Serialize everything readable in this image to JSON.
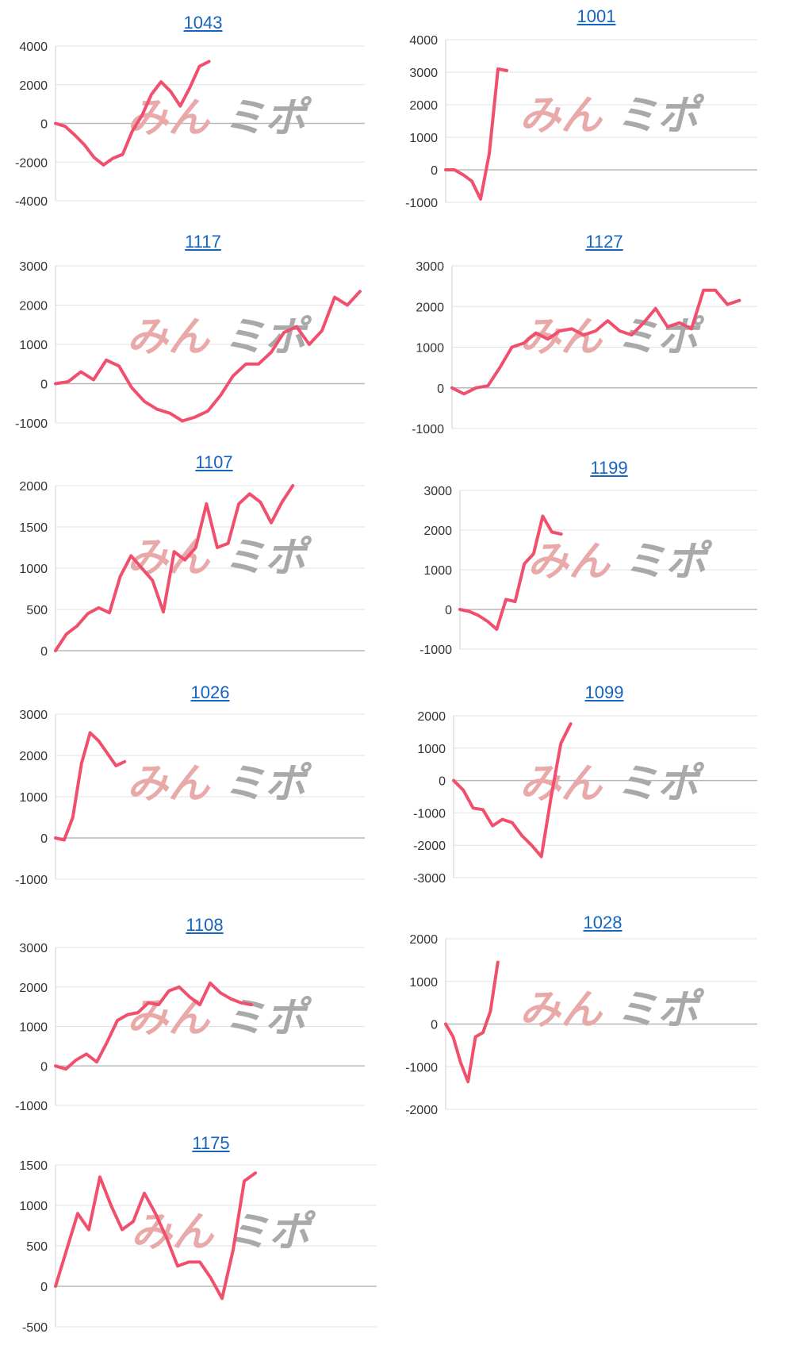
{
  "colors": {
    "line": "#f0506e",
    "title": "#1565c0",
    "watermark_red": "#e9a9a9",
    "watermark_gray": "#a9a9a9"
  },
  "watermark": {
    "part1": "みん",
    "part2": "ミポ"
  },
  "chart_data": [
    {
      "type": "line",
      "title": "1043",
      "ylim": [
        -4000,
        4000
      ],
      "yticks": [
        4000,
        2000,
        0,
        -2000,
        -4000
      ],
      "series": [
        {
          "values": [
            0,
            -150,
            -600,
            -1100,
            -1750,
            -2150,
            -1800,
            -1600,
            -400,
            400,
            1500,
            2150,
            1650,
            900,
            1850,
            2950,
            3200
          ]
        }
      ]
    },
    {
      "type": "line",
      "title": "1001",
      "ylim": [
        -1000,
        4000
      ],
      "yticks": [
        4000,
        3000,
        2000,
        1000,
        0,
        -1000
      ],
      "series": [
        {
          "values": [
            0,
            0,
            -150,
            -350,
            -900,
            500,
            3100,
            3050
          ]
        }
      ]
    },
    {
      "type": "line",
      "title": "1117",
      "ylim": [
        -1000,
        3000
      ],
      "yticks": [
        3000,
        2000,
        1000,
        0,
        -1000
      ],
      "series": [
        {
          "values": [
            0,
            50,
            300,
            100,
            600,
            450,
            -100,
            -450,
            -650,
            -750,
            -950,
            -850,
            -700,
            -300,
            200,
            500,
            500,
            800,
            1300,
            1450,
            1000,
            1350,
            2200,
            2000,
            2350
          ]
        }
      ]
    },
    {
      "type": "line",
      "title": "1127",
      "ylim": [
        -1000,
        3000
      ],
      "yticks": [
        3000,
        2000,
        1000,
        0,
        -1000
      ],
      "series": [
        {
          "values": [
            0,
            -150,
            0,
            50,
            500,
            1000,
            1100,
            1350,
            1200,
            1400,
            1450,
            1300,
            1400,
            1650,
            1400,
            1300,
            1600,
            1950,
            1500,
            1600,
            1450,
            2400,
            2400,
            2050,
            2150
          ]
        }
      ]
    },
    {
      "type": "line",
      "title": "1107",
      "ylim": [
        0,
        2000
      ],
      "yticks": [
        2000,
        1500,
        1000,
        500,
        0
      ],
      "series": [
        {
          "values": [
            0,
            200,
            300,
            450,
            520,
            460,
            900,
            1150,
            1000,
            850,
            470,
            1200,
            1100,
            1250,
            1780,
            1250,
            1300,
            1780,
            1900,
            1800,
            1550,
            1800,
            2000
          ]
        }
      ]
    },
    {
      "type": "line",
      "title": "1199",
      "ylim": [
        -1000,
        3000
      ],
      "yticks": [
        3000,
        2000,
        1000,
        0,
        -1000
      ],
      "series": [
        {
          "values": [
            0,
            -50,
            -150,
            -300,
            -500,
            250,
            200,
            1150,
            1400,
            2350,
            1950,
            1900
          ]
        }
      ]
    },
    {
      "type": "line",
      "title": "1026",
      "ylim": [
        -1000,
        3000
      ],
      "yticks": [
        3000,
        2000,
        1000,
        0,
        -1000
      ],
      "series": [
        {
          "values": [
            0,
            -50,
            500,
            1800,
            2550,
            2350,
            2050,
            1750,
            1850
          ]
        }
      ]
    },
    {
      "type": "line",
      "title": "1099",
      "ylim": [
        -3000,
        2000
      ],
      "yticks": [
        2000,
        1000,
        0,
        -1000,
        -2000,
        -3000
      ],
      "series": [
        {
          "values": [
            0,
            -300,
            -850,
            -900,
            -1400,
            -1200,
            -1300,
            -1700,
            -2000,
            -2350,
            -500,
            1150,
            1750
          ]
        }
      ]
    },
    {
      "type": "line",
      "title": "1108",
      "ylim": [
        -1000,
        3000
      ],
      "yticks": [
        3000,
        2000,
        1000,
        0,
        -1000
      ],
      "series": [
        {
          "values": [
            0,
            -80,
            150,
            300,
            100,
            600,
            1150,
            1300,
            1350,
            1600,
            1550,
            1900,
            2000,
            1750,
            1550,
            2100,
            1850,
            1700,
            1600,
            1550
          ]
        }
      ]
    },
    {
      "type": "line",
      "title": "1028",
      "ylim": [
        -2000,
        2000
      ],
      "yticks": [
        2000,
        1000,
        0,
        -1000,
        -2000
      ],
      "series": [
        {
          "values": [
            0,
            -300,
            -900,
            -1350,
            -300,
            -200,
            300,
            1450
          ]
        }
      ]
    },
    {
      "type": "line",
      "title": "1175",
      "ylim": [
        -500,
        1500
      ],
      "yticks": [
        1500,
        1000,
        500,
        0,
        -500
      ],
      "series": [
        {
          "values": [
            0,
            450,
            900,
            700,
            1350,
            1000,
            700,
            800,
            1150,
            900,
            600,
            250,
            300,
            300,
            100,
            -150,
            450,
            1300,
            1400
          ]
        }
      ]
    }
  ]
}
